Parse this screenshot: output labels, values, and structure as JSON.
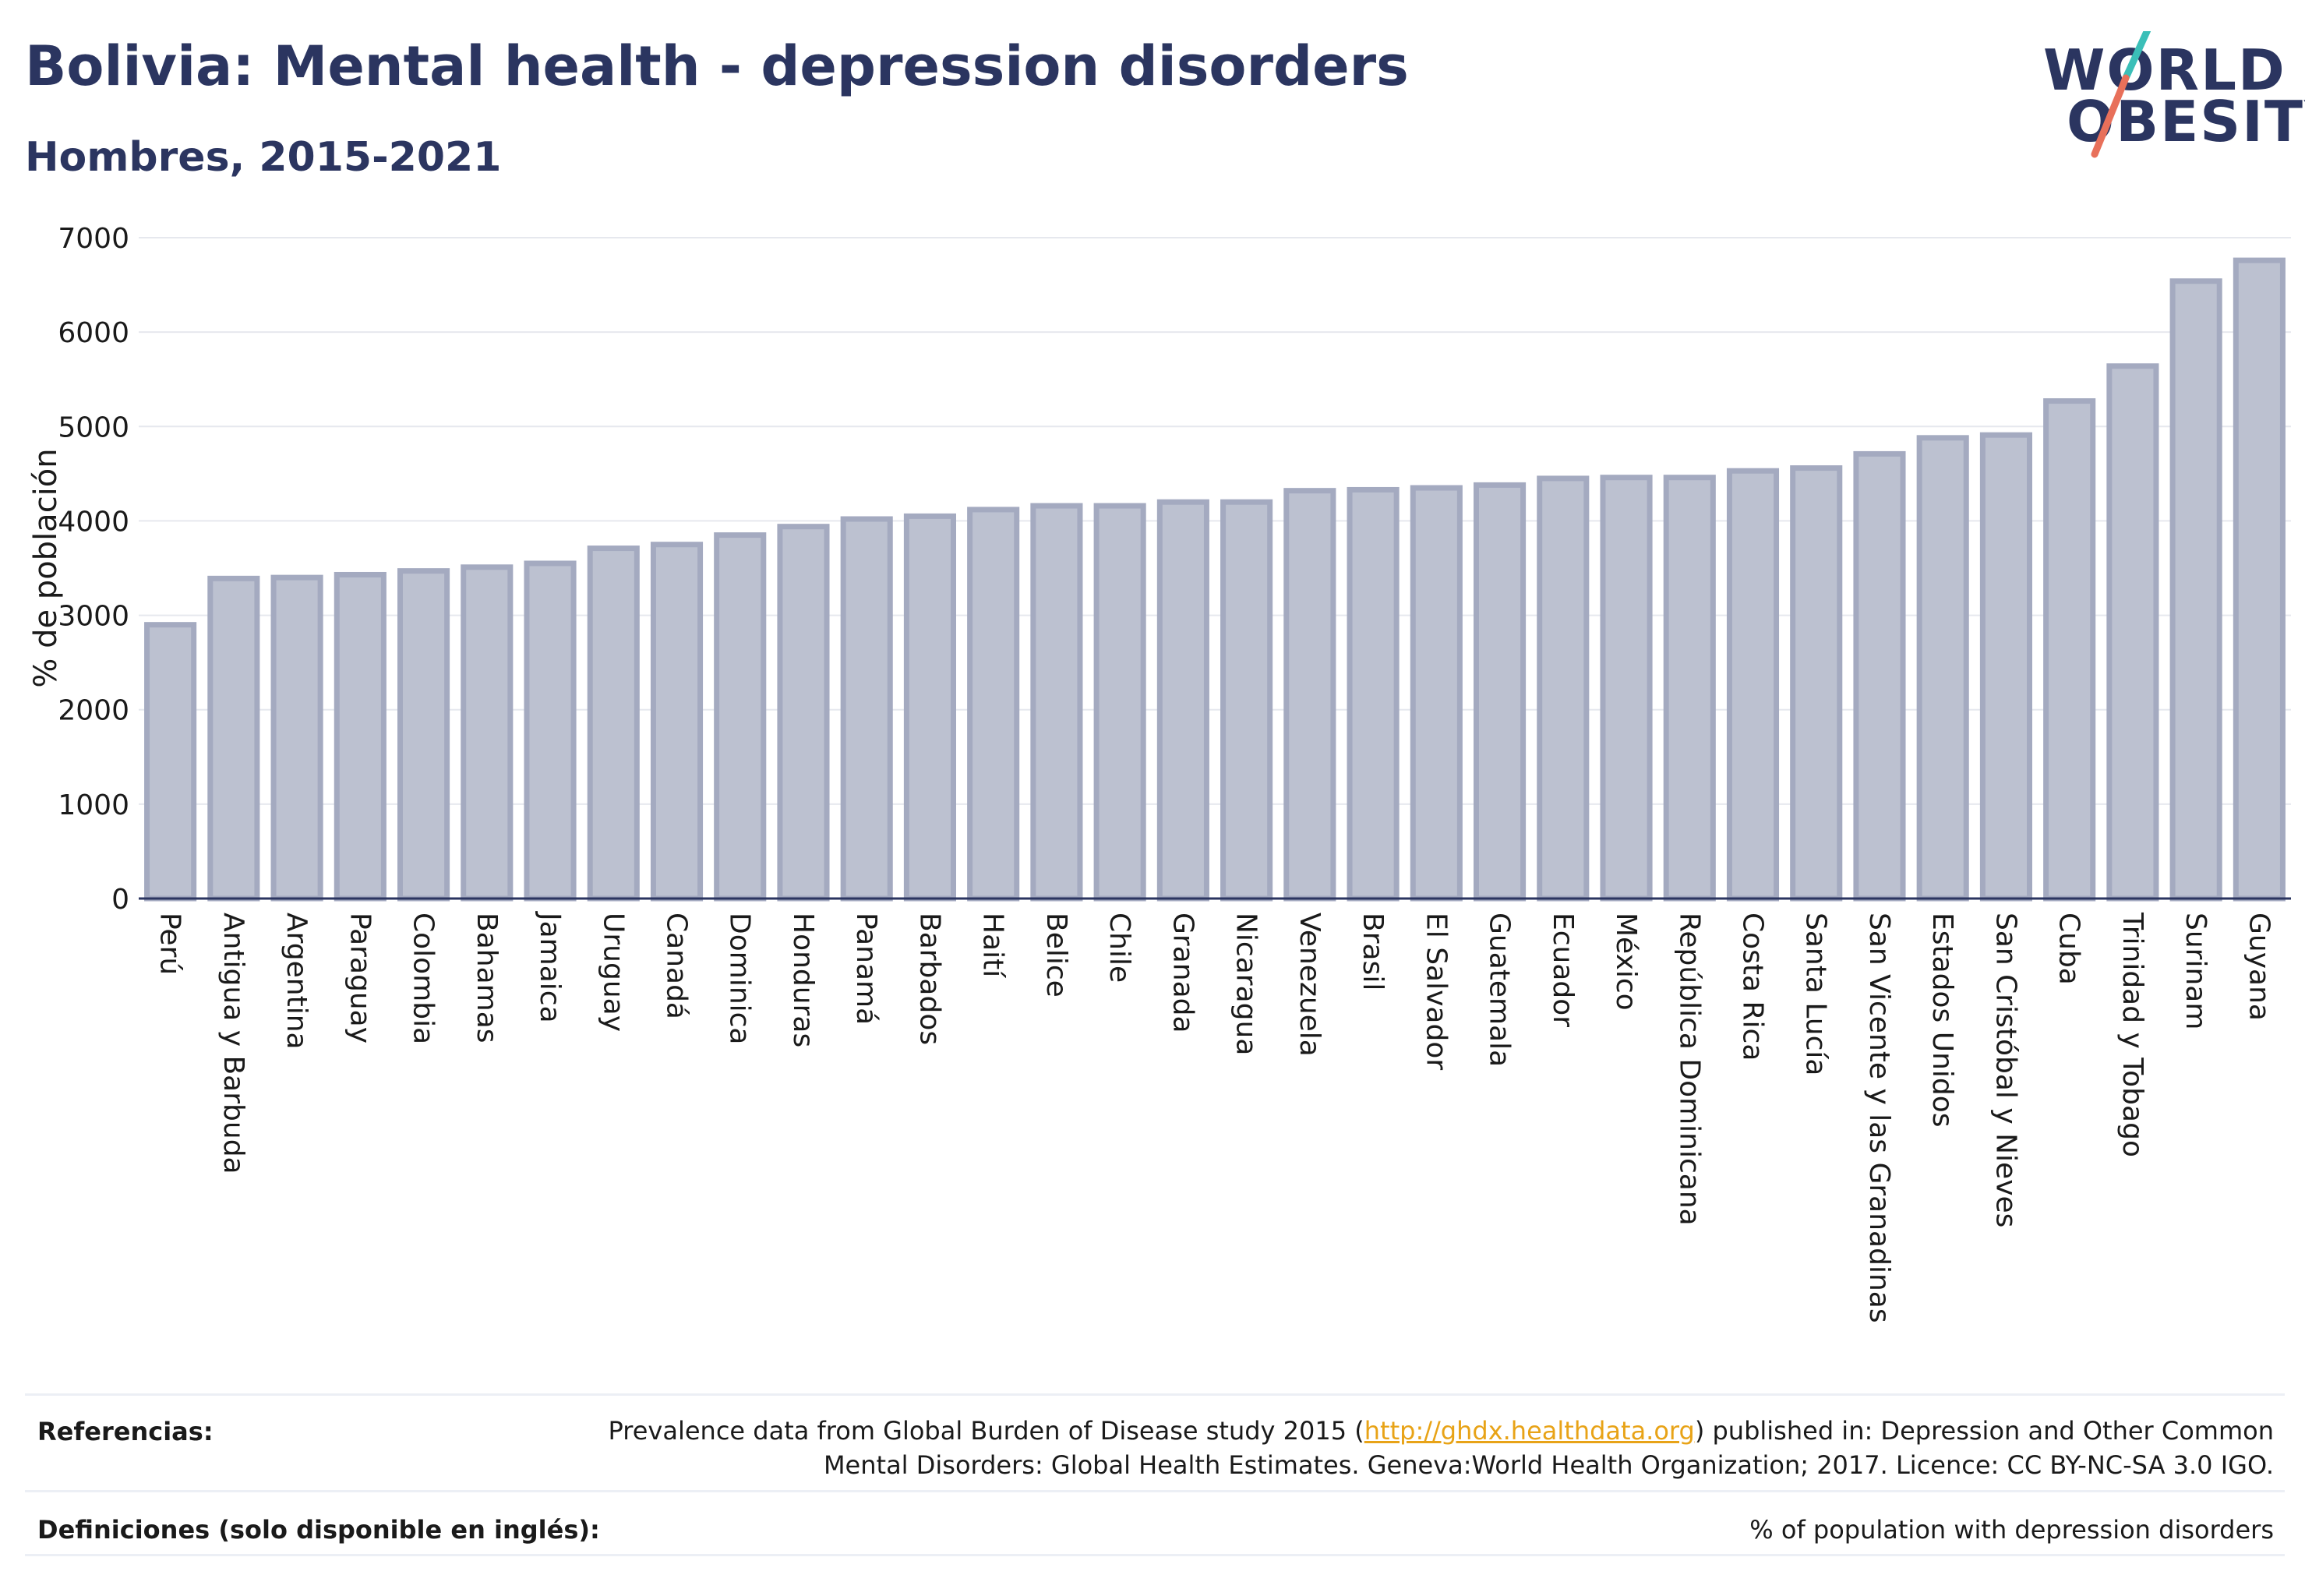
{
  "header": {
    "title": "Bolivia: Mental health - depression disorders",
    "subtitle": "Hombres, 2015-2021"
  },
  "logo": {
    "line1": "WORLD",
    "line2": "OBESITY",
    "colors": {
      "text": "#2b3560",
      "slash_top": "#3bbfb8",
      "slash_bottom": "#e8705a"
    }
  },
  "chart_data": {
    "type": "bar",
    "title": "",
    "xlabel": "",
    "ylabel": "% de población",
    "ylim": [
      0,
      7000
    ],
    "yticks": [
      0,
      1000,
      2000,
      3000,
      4000,
      5000,
      6000,
      7000
    ],
    "grid": true,
    "bar_color": "#bcc1d0",
    "bar_edge_color": "#a4aac0",
    "categories": [
      "Perú",
      "Antigua y Barbuda",
      "Argentina",
      "Paraguay",
      "Colombia",
      "Bahamas",
      "Jamaica",
      "Uruguay",
      "Canadá",
      "Dominica",
      "Honduras",
      "Panamá",
      "Barbados",
      "Haití",
      "Belice",
      "Chile",
      "Granada",
      "Nicaragua",
      "Venezuela",
      "Brasil",
      "El Salvador",
      "Guatemala",
      "Ecuador",
      "México",
      "República Dominicana",
      "Costa Rica",
      "Santa Lucía",
      "San Vicente y las Granadinas",
      "Estados Unidos",
      "San Cristóbal y Nieves",
      "Cuba",
      "Trinidad y Tobago",
      "Surinam",
      "Guyana"
    ],
    "values": [
      2900,
      3390,
      3400,
      3430,
      3470,
      3510,
      3550,
      3710,
      3750,
      3850,
      3940,
      4020,
      4050,
      4120,
      4160,
      4160,
      4200,
      4200,
      4320,
      4330,
      4350,
      4380,
      4450,
      4460,
      4460,
      4530,
      4560,
      4710,
      4880,
      4910,
      5270,
      5640,
      6540,
      6760
    ]
  },
  "footer": {
    "references_label": "Referencias:",
    "references_pre": "Prevalence data from Global Burden of Disease study 2015 (",
    "references_link": "http://ghdx.healthdata.org",
    "references_post": ") published in: Depression and Other Common Mental Disorders: Global Health Estimates. Geneva:World Health Organization; 2017. Licence: CC BY-NC-SA 3.0 IGO.",
    "definitions_label": "Definiciones (solo disponible en inglés):",
    "definitions_text": "% of population with depression disorders"
  }
}
